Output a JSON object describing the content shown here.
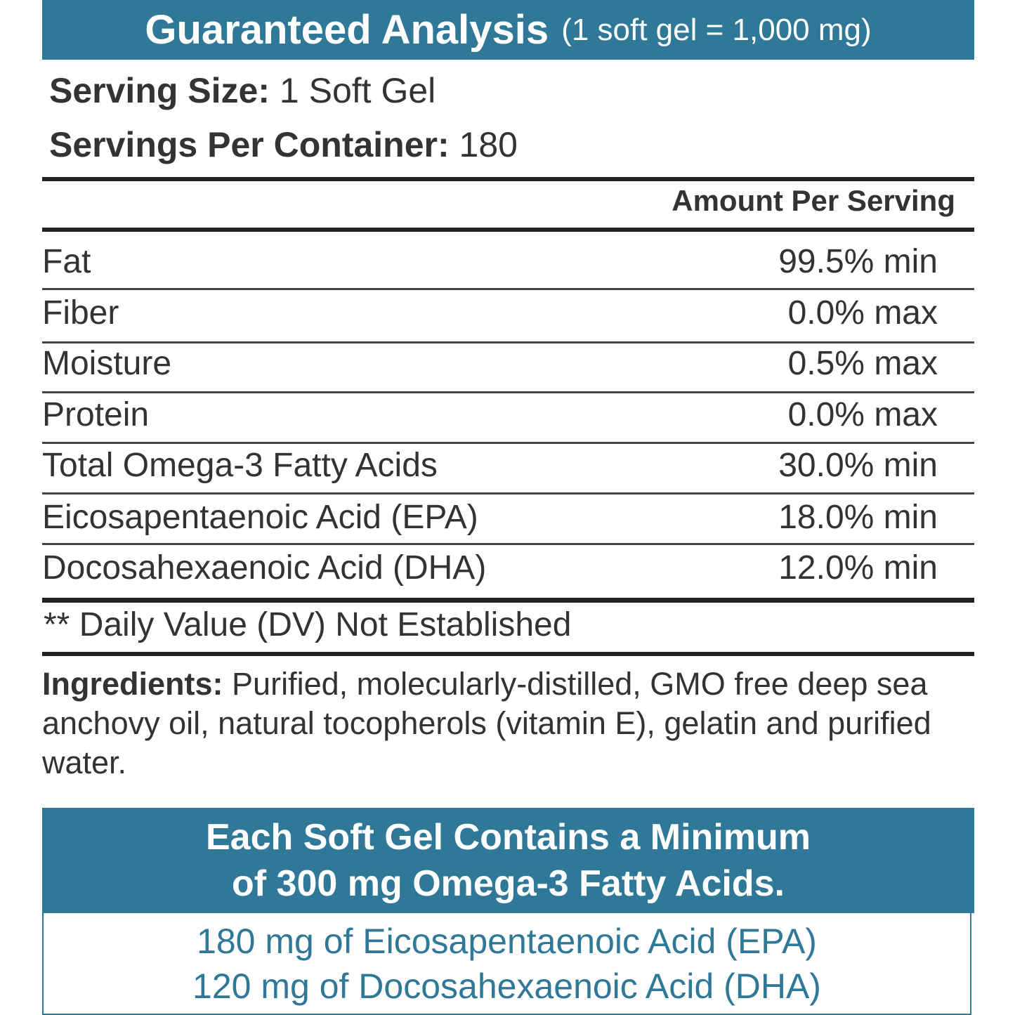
{
  "header": {
    "title": "Guaranteed Analysis",
    "subtitle": "(1 soft gel = 1,000 mg)"
  },
  "serving": {
    "size_label": "Serving Size:",
    "size_value": "1 Soft Gel",
    "container_label": "Servings Per Container:",
    "container_value": "180"
  },
  "table": {
    "column_header": "Amount Per Serving",
    "rows": [
      [
        "Fat",
        "99.5% min"
      ],
      [
        "Fiber",
        "0.0% max"
      ],
      [
        "Moisture",
        "0.5% max"
      ],
      [
        "Protein",
        "0.0% max"
      ],
      [
        "Total Omega-3 Fatty Acids",
        "30.0% min"
      ],
      [
        "Eicosapentaenoic Acid (EPA)",
        "18.0% min"
      ],
      [
        "Docosahexaenoic Acid (DHA)",
        "12.0% min"
      ]
    ],
    "footnote": "** Daily Value (DV) Not Established"
  },
  "ingredients": {
    "label": "Ingredients:",
    "text": "Purified, molecularly-distilled, GMO free deep sea anchovy oil, natural tocopherols (vitamin E), gelatin and purified water."
  },
  "callout": {
    "heading": [
      "Each Soft Gel Contains a Minimum",
      "of 300 mg Omega-3 Fatty Acids."
    ],
    "details": [
      "180 mg of Eicosapentaenoic Acid (EPA)",
      "120 mg of Docosahexaenoic Acid (DHA)"
    ]
  }
}
